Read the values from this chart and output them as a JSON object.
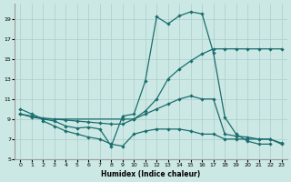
{
  "xlabel": "Humidex (Indice chaleur)",
  "bg_color": "#cce8e4",
  "grid_color": "#aacccc",
  "line_color": "#1a6e6e",
  "xlim": [
    -0.5,
    23.5
  ],
  "ylim": [
    5,
    20.5
  ],
  "xticks": [
    0,
    1,
    2,
    3,
    4,
    5,
    6,
    7,
    8,
    9,
    10,
    11,
    12,
    13,
    14,
    15,
    16,
    17,
    18,
    19,
    20,
    21,
    22,
    23
  ],
  "yticks": [
    5,
    7,
    9,
    11,
    13,
    15,
    17,
    19
  ],
  "curve1_x": [
    0,
    1,
    2,
    3,
    4,
    5,
    6,
    7,
    8,
    9,
    10,
    11,
    12,
    13,
    14,
    15,
    16,
    17,
    18,
    19,
    20,
    21,
    22
  ],
  "curve1_y": [
    10.0,
    9.5,
    9.0,
    8.8,
    8.3,
    8.1,
    8.2,
    8.0,
    6.3,
    9.3,
    9.5,
    12.8,
    19.2,
    18.5,
    19.3,
    19.7,
    19.5,
    15.6,
    9.2,
    7.5,
    6.8,
    6.5,
    6.5
  ],
  "curve2_x": [
    0,
    1,
    2,
    3,
    4,
    5,
    6,
    7,
    8,
    9,
    10,
    11,
    12,
    13,
    14,
    15,
    16,
    17,
    18,
    19,
    20,
    21,
    22,
    23
  ],
  "curve2_y": [
    9.5,
    9.3,
    9.1,
    9.0,
    8.9,
    8.8,
    8.7,
    8.6,
    8.5,
    8.5,
    9.0,
    9.5,
    10.0,
    10.5,
    11.0,
    11.3,
    11.0,
    11.0,
    7.5,
    7.3,
    7.2,
    7.0,
    7.0,
    6.6
  ],
  "curve3_x": [
    0,
    1,
    2,
    9,
    10,
    11,
    12,
    13,
    14,
    15,
    16,
    17,
    18,
    19,
    20,
    21,
    22,
    23
  ],
  "curve3_y": [
    9.5,
    9.2,
    9.0,
    9.0,
    9.0,
    9.8,
    11.0,
    13.0,
    14.0,
    14.8,
    15.5,
    16.0,
    16.0,
    16.0,
    16.0,
    16.0,
    16.0,
    16.0
  ],
  "curve4_x": [
    2,
    3,
    4,
    5,
    6,
    7,
    8,
    9,
    10,
    11,
    12,
    13,
    14,
    15,
    16,
    17,
    18,
    19,
    20,
    21,
    22,
    23
  ],
  "curve4_y": [
    8.8,
    8.3,
    7.8,
    7.5,
    7.2,
    7.0,
    6.5,
    6.3,
    7.5,
    7.8,
    8.0,
    8.0,
    8.0,
    7.8,
    7.5,
    7.5,
    7.0,
    7.0,
    7.0,
    7.0,
    7.0,
    6.5
  ]
}
